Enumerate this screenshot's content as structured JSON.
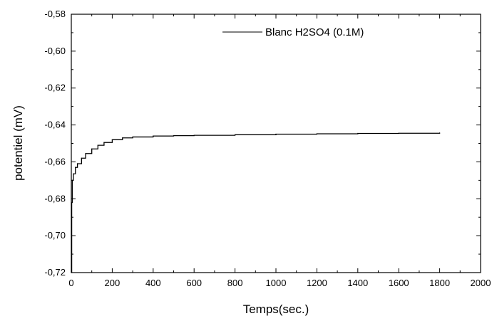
{
  "chart_data": {
    "type": "line",
    "xlabel": "Temps(sec.)",
    "ylabel": "potentiel (mV)",
    "xlim": [
      0,
      2000
    ],
    "ylim": [
      -0.72,
      -0.58
    ],
    "x_ticks": [
      0,
      200,
      400,
      600,
      800,
      1000,
      1200,
      1400,
      1600,
      1800,
      2000
    ],
    "y_ticks": [
      -0.72,
      -0.7,
      -0.68,
      -0.66,
      -0.64,
      -0.62,
      -0.6,
      -0.58
    ],
    "x_tick_labels": [
      "0",
      "200",
      "400",
      "600",
      "800",
      "1000",
      "1200",
      "1400",
      "1600",
      "1800",
      "2000"
    ],
    "y_tick_labels": [
      "-0,72",
      "-0,70",
      "-0,68",
      "-0,66",
      "-0,64",
      "-0,62",
      "-0,60",
      "-0,58"
    ],
    "grid": false,
    "legend_position": "top-right",
    "series": [
      {
        "name": "Blanc H2SO4 (0.1M)",
        "color": "#000000",
        "x": [
          0,
          2,
          5,
          10,
          20,
          30,
          50,
          70,
          100,
          130,
          160,
          200,
          250,
          300,
          400,
          500,
          600,
          800,
          1000,
          1200,
          1400,
          1600,
          1800
        ],
        "y": [
          -0.72,
          -0.682,
          -0.67,
          -0.6665,
          -0.663,
          -0.661,
          -0.658,
          -0.6555,
          -0.653,
          -0.651,
          -0.6495,
          -0.648,
          -0.647,
          -0.6465,
          -0.646,
          -0.6458,
          -0.6456,
          -0.6453,
          -0.645,
          -0.6448,
          -0.6446,
          -0.6445,
          -0.6443
        ]
      }
    ]
  }
}
